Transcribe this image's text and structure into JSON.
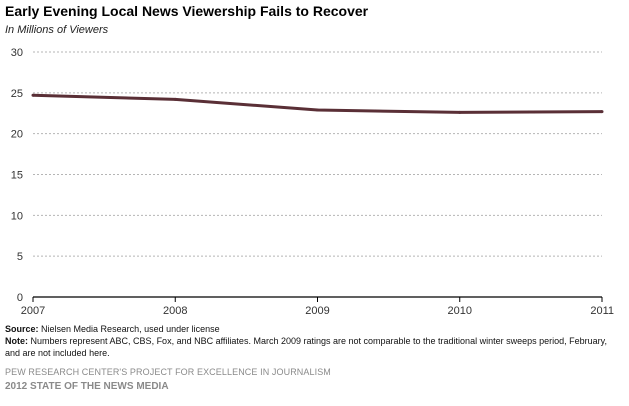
{
  "header": {
    "title": "Early Evening Local News Viewership Fails to Recover",
    "subtitle": "In Millions of Viewers"
  },
  "chart_data": {
    "type": "line",
    "title": "Early Evening Local News Viewership Fails to Recover",
    "ylabel": "In Millions of Viewers",
    "xlabel": "",
    "x": [
      "2007",
      "2008",
      "2009",
      "2010",
      "2011"
    ],
    "series": [
      {
        "values": [
          24.7,
          24.2,
          22.9,
          22.6,
          22.7
        ]
      }
    ],
    "ylim": [
      0,
      30
    ],
    "yticks": [
      0,
      5,
      10,
      15,
      20,
      25,
      30
    ],
    "grid": true,
    "line_color": "#5a2f36"
  },
  "footer": {
    "source_label": "Source:",
    "source_text": "Nielsen Media Research, used under license",
    "note_label": "Note:",
    "note_text": "Numbers represent ABC, CBS, Fox, and NBC affiliates. March 2009 ratings are not comparable to the traditional winter sweeps period, February, and are not included  here.",
    "org": "PEW RESEARCH CENTER'S PROJECT FOR EXCELLENCE IN JOURNALISM",
    "report": "2012 STATE OF THE NEWS MEDIA"
  }
}
